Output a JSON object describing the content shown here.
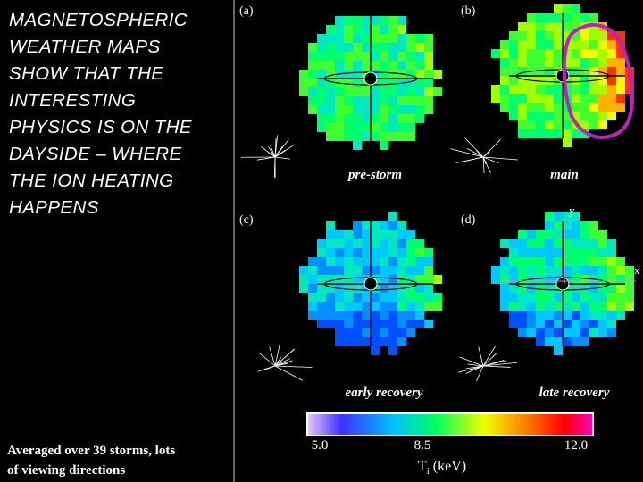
{
  "slide": {
    "title_lines": [
      "MAGNETOSPHERIC",
      "WEATHER MAPS",
      "SHOW THAT THE",
      "INTERESTING",
      "PHYSICS IS ON THE",
      "DAYSIDE – WHERE",
      "THE ION HEATING",
      "HAPPENS"
    ],
    "footnote_lines": [
      "Averaged over 39 storms, lots",
      "of viewing directions"
    ]
  },
  "figure": {
    "panels": [
      {
        "label": "(a)",
        "caption": "pre-storm"
      },
      {
        "label": "(b)",
        "caption": "main"
      },
      {
        "label": "(c)",
        "caption": "early recovery"
      },
      {
        "label": "(d)",
        "caption": "late recovery"
      }
    ],
    "axis_y": "y",
    "axis_x": "x",
    "colorbar": {
      "ticks": [
        "5.0",
        "8.5",
        "12.0"
      ],
      "label": "T",
      "label_sub": "i",
      "label_unit": " (keV)"
    }
  }
}
